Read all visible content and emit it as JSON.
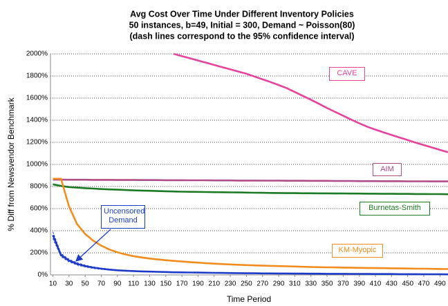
{
  "chart_data": {
    "type": "line",
    "title": [
      "Avg Cost Over Time Under Different Inventory Policies",
      "50 instances, b=49, Initial = 300, Demand ~ Poisson(80)",
      "(dash lines correspond to the 95% confidence interval)"
    ],
    "xlabel": "Time Period",
    "ylabel": "% Diff from Newsvendor Benchmark",
    "x": [
      10,
      20,
      30,
      40,
      50,
      60,
      70,
      80,
      90,
      100,
      110,
      120,
      130,
      140,
      150,
      160,
      170,
      180,
      190,
      200,
      210,
      220,
      230,
      240,
      250,
      260,
      270,
      280,
      290,
      300,
      310,
      320,
      330,
      340,
      350,
      360,
      370,
      380,
      390,
      400,
      410,
      420,
      430,
      440,
      450,
      460,
      470,
      480,
      490,
      500
    ],
    "xlim": [
      7,
      500
    ],
    "xticks": [
      10,
      30,
      50,
      70,
      90,
      110,
      130,
      150,
      170,
      190,
      210,
      230,
      250,
      270,
      290,
      310,
      330,
      350,
      370,
      390,
      410,
      430,
      450,
      470,
      490
    ],
    "ylim": [
      0,
      2000
    ],
    "yticks": [
      {
        "value": 0,
        "label": "0%"
      },
      {
        "value": 200,
        "label": "200%"
      },
      {
        "value": 400,
        "label": "400%"
      },
      {
        "value": 600,
        "label": "600%"
      },
      {
        "value": 800,
        "label": "800%"
      },
      {
        "value": 1000,
        "label": "1000%"
      },
      {
        "value": 1200,
        "label": "1200%"
      },
      {
        "value": 1400,
        "label": "1400%"
      },
      {
        "value": 1600,
        "label": "1600%"
      },
      {
        "value": 1800,
        "label": "1800%"
      },
      {
        "value": 2000,
        "label": "2000%"
      }
    ],
    "grid": true,
    "series": [
      {
        "name": "CAVE",
        "color": "#e8409c",
        "values": [
          null,
          null,
          null,
          null,
          null,
          null,
          null,
          null,
          null,
          null,
          null,
          null,
          null,
          null,
          null,
          2000,
          1980,
          1960,
          1940,
          1920,
          1900,
          1880,
          1860,
          1840,
          1820,
          1795,
          1770,
          1745,
          1718,
          1690,
          1655,
          1620,
          1585,
          1548,
          1510,
          1475,
          1440,
          1405,
          1372,
          1340,
          1315,
          1290,
          1266,
          1243,
          1220,
          1197,
          1175,
          1153,
          1131,
          1110
        ]
      },
      {
        "name": "AIM",
        "color": "#b04a88",
        "values": [
          862,
          862,
          861,
          861,
          861,
          860,
          860,
          860,
          859,
          859,
          859,
          858,
          858,
          858,
          857,
          857,
          857,
          856,
          856,
          856,
          855,
          855,
          855,
          854,
          854,
          854,
          853,
          853,
          853,
          852,
          852,
          852,
          851,
          851,
          851,
          850,
          850,
          850,
          849,
          849,
          849,
          848,
          848,
          848,
          847,
          847,
          847,
          846,
          846,
          846
        ]
      },
      {
        "name": "Burnetas-Smith",
        "color": "#1a7a22",
        "values": [
          820,
          805,
          795,
          790,
          785,
          781,
          777,
          774,
          771,
          768,
          765,
          763,
          761,
          759,
          757,
          755,
          753,
          752,
          751,
          750,
          749,
          748,
          747,
          746,
          745,
          744,
          743,
          742,
          741,
          740,
          740,
          739,
          739,
          738,
          738,
          737,
          737,
          736,
          736,
          735,
          735,
          734,
          734,
          733,
          733,
          732,
          732,
          731,
          731,
          730
        ]
      },
      {
        "name": "KM-Myopic",
        "color": "#f28c1c",
        "values": [
          870,
          870,
          620,
          460,
          370,
          310,
          265,
          230,
          205,
          185,
          170,
          158,
          148,
          140,
          133,
          127,
          121,
          116,
          111,
          106,
          102,
          98,
          95,
          92,
          89,
          86,
          84,
          82,
          80,
          78,
          76,
          74,
          72,
          70,
          69,
          68,
          66,
          65,
          64,
          63,
          62,
          61,
          60,
          59,
          58,
          57,
          56,
          55,
          54,
          53
        ]
      },
      {
        "name": "Uncensored Demand",
        "color": "#1c3cc8",
        "values": [
          360,
          180,
          130,
          100,
          80,
          66,
          56,
          48,
          42,
          38,
          35,
          32,
          30,
          28,
          26,
          24,
          23,
          22,
          21,
          20,
          19,
          18,
          17,
          16,
          15,
          15,
          14,
          14,
          13,
          13,
          12,
          12,
          11,
          11,
          10,
          10,
          10,
          9,
          9,
          9,
          8,
          8,
          8,
          7,
          7,
          7,
          6,
          6,
          6,
          5
        ],
        "ci_low": [
          330,
          165,
          118,
          90,
          72,
          59,
          50,
          43,
          38,
          34,
          31,
          29,
          27,
          25,
          23,
          22,
          21,
          20,
          19,
          18,
          17,
          16,
          15,
          14,
          14,
          13,
          13,
          12,
          12,
          11,
          11,
          11,
          10,
          10,
          9,
          9,
          9,
          8,
          8,
          8,
          7,
          7,
          7,
          6,
          6,
          6,
          5,
          5,
          5,
          4
        ],
        "ci_high": [
          390,
          195,
          142,
          110,
          88,
          73,
          62,
          53,
          46,
          42,
          39,
          35,
          33,
          31,
          29,
          26,
          25,
          24,
          23,
          22,
          21,
          20,
          19,
          18,
          17,
          16,
          15,
          15,
          14,
          14,
          13,
          13,
          12,
          12,
          11,
          11,
          11,
          10,
          10,
          10,
          9,
          9,
          9,
          8,
          8,
          8,
          7,
          7,
          7,
          6
        ]
      }
    ]
  }
}
